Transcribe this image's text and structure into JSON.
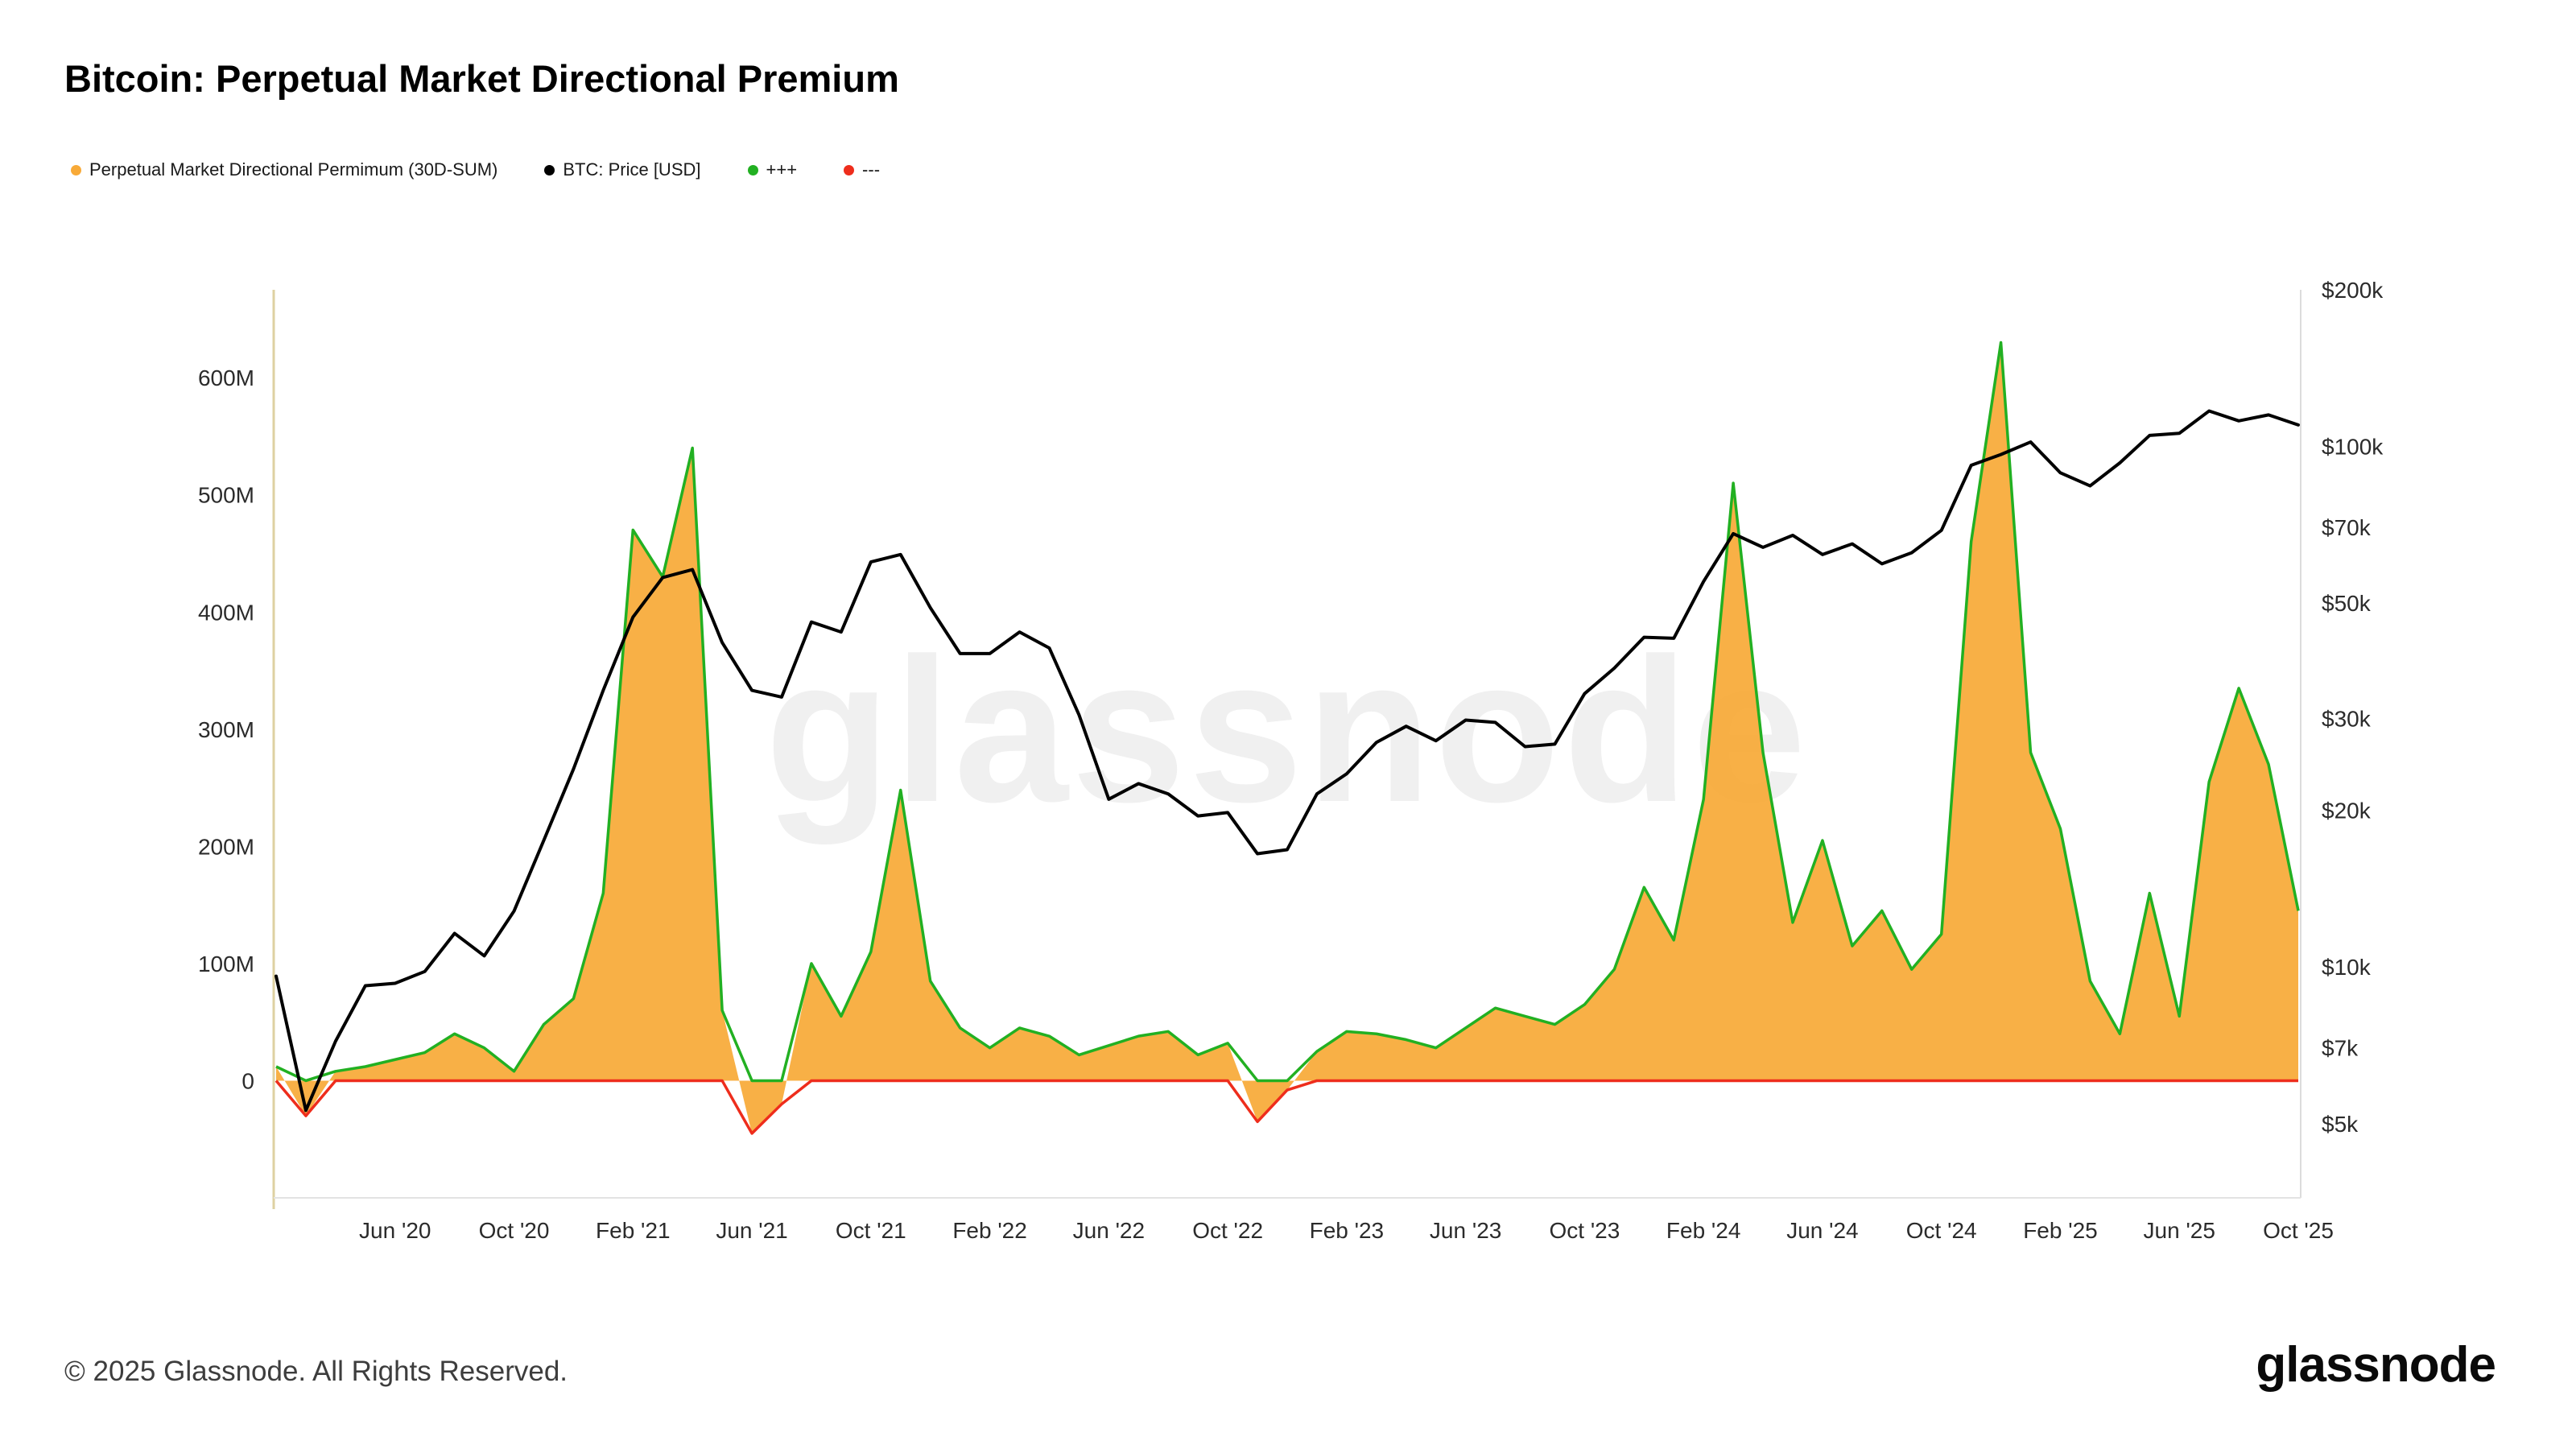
{
  "header": {
    "title": "Bitcoin: Perpetual Market Directional Premium"
  },
  "legend": [
    {
      "label": "Perpetual Market Directional Permimum (30D-SUM)",
      "color": "#f8aa38"
    },
    {
      "label": "BTC: Price [USD]",
      "color": "#000000"
    },
    {
      "label": "+++",
      "color": "#22b022"
    },
    {
      "label": "---",
      "color": "#ee2d1c"
    }
  ],
  "footer": {
    "copyright": "© 2025 Glassnode. All Rights Reserved.",
    "brand": "glassnode"
  },
  "chart_data": {
    "type": "area",
    "title": "Bitcoin: Perpetual Market Directional Premium",
    "watermark": "glassnode",
    "grid": false,
    "legend_position": "top-left",
    "x": [
      "Feb '20",
      "Mar '20",
      "Apr '20",
      "May '20",
      "Jun '20",
      "Jul '20",
      "Aug '20",
      "Sep '20",
      "Oct '20",
      "Nov '20",
      "Dec '20",
      "Jan '21",
      "Feb '21",
      "Mar '21",
      "Apr '21",
      "May '21",
      "Jun '21",
      "Jul '21",
      "Aug '21",
      "Sep '21",
      "Oct '21",
      "Nov '21",
      "Dec '21",
      "Jan '22",
      "Feb '22",
      "Mar '22",
      "Apr '22",
      "May '22",
      "Jun '22",
      "Jul '22",
      "Aug '22",
      "Sep '22",
      "Oct '22",
      "Nov '22",
      "Dec '22",
      "Jan '23",
      "Feb '23",
      "Mar '23",
      "Apr '23",
      "May '23",
      "Jun '23",
      "Jul '23",
      "Aug '23",
      "Sep '23",
      "Oct '23",
      "Nov '23",
      "Dec '23",
      "Jan '24",
      "Feb '24",
      "Mar '24",
      "Apr '24",
      "May '24",
      "Jun '24",
      "Jul '24",
      "Aug '24",
      "Sep '24",
      "Oct '24",
      "Nov '24",
      "Dec '24",
      "Jan '25",
      "Feb '25",
      "Mar '25",
      "Apr '25",
      "May '25",
      "Jun '25",
      "Jul '25",
      "Aug '25",
      "Sep '25",
      "Oct '25"
    ],
    "x_ticks": {
      "start_index": 4,
      "step": 4,
      "labels": [
        "Jun '20",
        "Oct '20",
        "Feb '21",
        "Jun '21",
        "Oct '21",
        "Feb '22",
        "Jun '22",
        "Oct '22",
        "Feb '23",
        "Jun '23",
        "Oct '23",
        "Feb '24",
        "Jun '24",
        "Oct '24",
        "Feb '25",
        "Jun '25",
        "Oct '25"
      ]
    },
    "left_axis": {
      "unit": "USD millions",
      "min": -100,
      "max": 675,
      "ticks": [
        {
          "value": 0,
          "label": "0"
        },
        {
          "value": 100,
          "label": "100M"
        },
        {
          "value": 200,
          "label": "200M"
        },
        {
          "value": 300,
          "label": "300M"
        },
        {
          "value": 400,
          "label": "400M"
        },
        {
          "value": 500,
          "label": "500M"
        },
        {
          "value": 600,
          "label": "600M"
        }
      ]
    },
    "right_axis": {
      "unit": "USD thousands",
      "scale": "log",
      "min": 3.6,
      "max": 200,
      "ticks": [
        {
          "value": 5,
          "label": "$5k"
        },
        {
          "value": 7,
          "label": "$7k"
        },
        {
          "value": 10,
          "label": "$10k"
        },
        {
          "value": 20,
          "label": "$20k"
        },
        {
          "value": 30,
          "label": "$30k"
        },
        {
          "value": 50,
          "label": "$50k"
        },
        {
          "value": 70,
          "label": "$70k"
        },
        {
          "value": 100,
          "label": "$100k"
        },
        {
          "value": 200,
          "label": "$200k"
        }
      ]
    },
    "series": [
      {
        "name": "Perpetual Market Directional Permimum (30D-SUM)",
        "axis": "left",
        "style": "area",
        "fill": "#f8aa38",
        "stroke_positive": "#22b022",
        "stroke_negative": "#ee2d1c",
        "unit": "USD millions",
        "values": [
          12,
          -30,
          8,
          12,
          18,
          24,
          40,
          28,
          8,
          48,
          70,
          160,
          470,
          430,
          540,
          60,
          -45,
          -20,
          100,
          55,
          110,
          248,
          85,
          45,
          28,
          45,
          38,
          22,
          30,
          38,
          42,
          22,
          32,
          -35,
          -8,
          25,
          42,
          40,
          35,
          28,
          45,
          62,
          55,
          48,
          65,
          95,
          165,
          120,
          240,
          510,
          280,
          135,
          205,
          115,
          145,
          95,
          125,
          460,
          630,
          280,
          215,
          85,
          40,
          160,
          55,
          255,
          335,
          270,
          145
        ]
      },
      {
        "name": "BTC: Price [USD]",
        "axis": "right",
        "style": "line",
        "color": "#000000",
        "unit": "USD thousands",
        "values": [
          9.6,
          5.3,
          7.2,
          9.2,
          9.3,
          9.8,
          11.6,
          10.5,
          12.8,
          17.5,
          24,
          34,
          47,
          56,
          58,
          42,
          34,
          33,
          46,
          44,
          60,
          62,
          49,
          40,
          40,
          44,
          41,
          30.5,
          21,
          22.5,
          21.5,
          19.5,
          19.8,
          16.5,
          16.8,
          21.5,
          23.5,
          27,
          29,
          27.2,
          29.8,
          29.5,
          26.5,
          26.8,
          33.5,
          37.5,
          43,
          42.8,
          55,
          68,
          64,
          67.5,
          62,
          65,
          59.5,
          62.5,
          69,
          92,
          96.5,
          102,
          89,
          84,
          93,
          105,
          106,
          117,
          112,
          115,
          110
        ]
      }
    ]
  }
}
